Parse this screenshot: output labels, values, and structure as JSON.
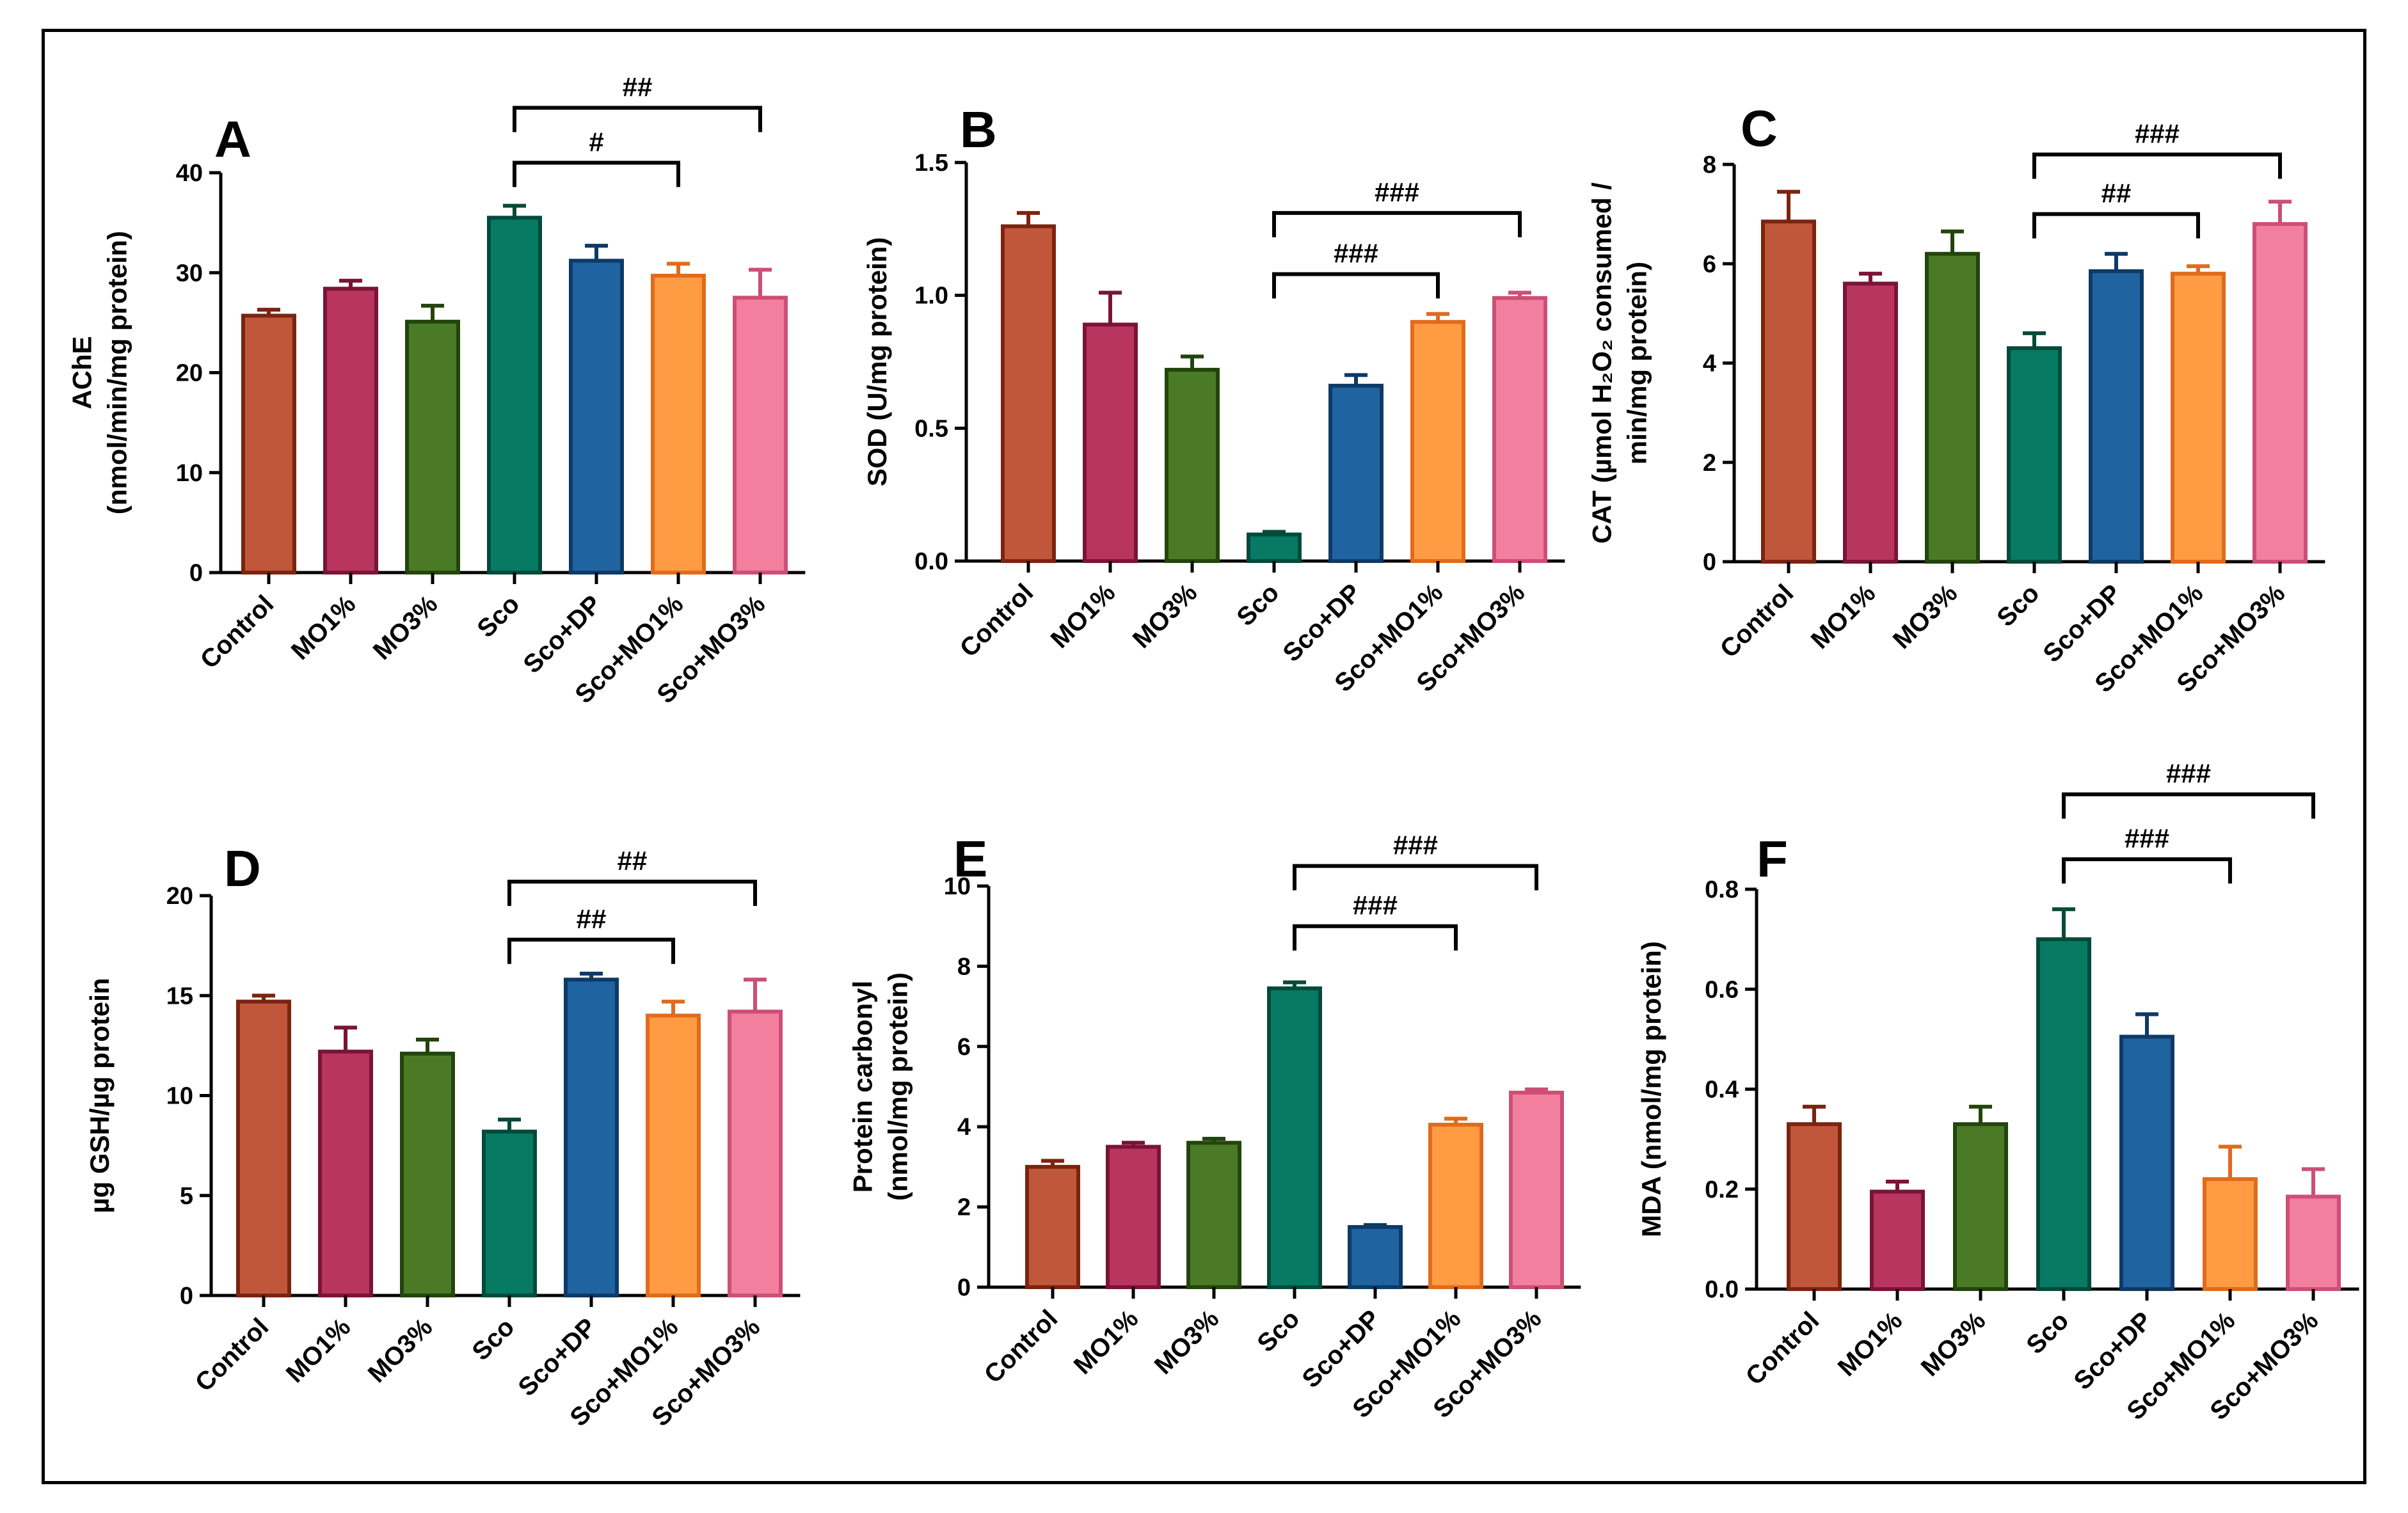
{
  "colors": {
    "Control": "#c0573b",
    "MO1%": "#b8355f",
    "MO3%": "#4b7a26",
    "Sco": "#067a62",
    "Sco+DP": "#2063a1",
    "Sco+MO1%": "#ff9b43",
    "Sco+MO3%": "#f27f9e"
  },
  "edge_colors": {
    "Control": "#7a2410",
    "MO1%": "#7a1436",
    "MO3%": "#22450c",
    "Sco": "#034a3b",
    "Sco+DP": "#0d3a66",
    "Sco+MO1%": "#e06b1d",
    "Sco+MO3%": "#cc4f75"
  },
  "chart_data": [
    {
      "panel": "A",
      "type": "bar",
      "categories": [
        "Control",
        "MO1%",
        "MO3%",
        "Sco",
        "Sco+DP",
        "Sco+MO1%",
        "Sco+MO3%"
      ],
      "values": [
        25.7,
        28.4,
        25.1,
        35.5,
        31.2,
        29.7,
        27.5
      ],
      "errors": [
        0.6,
        0.8,
        1.6,
        1.2,
        1.5,
        1.2,
        2.8
      ],
      "ylabel_lines": [
        "AChE",
        "(nmol/min/mg protein)"
      ],
      "ylim": [
        0,
        40
      ],
      "yticks": [
        "0",
        "10",
        "20",
        "30",
        "40"
      ],
      "ytick_values": [
        0,
        10,
        20,
        30,
        40
      ],
      "significance": [
        {
          "from": 3,
          "to": 5,
          "label": "#",
          "y": 41
        },
        {
          "from": 3,
          "to": 6,
          "label": "##",
          "y": 46.5
        }
      ]
    },
    {
      "panel": "B",
      "type": "bar",
      "categories": [
        "Control",
        "MO1%",
        "MO3%",
        "Sco",
        "Sco+DP",
        "Sco+MO1%",
        "Sco+MO3%"
      ],
      "values": [
        1.26,
        0.89,
        0.72,
        0.1,
        0.66,
        0.9,
        0.99
      ],
      "errors": [
        0.05,
        0.12,
        0.05,
        0.01,
        0.04,
        0.03,
        0.02
      ],
      "ylabel_lines": [
        "SOD (U/mg protein)"
      ],
      "ylim": [
        0,
        1.5
      ],
      "yticks": [
        "0.0",
        "0.5",
        "1.0",
        "1.5"
      ],
      "ytick_values": [
        0,
        0.5,
        1.0,
        1.5
      ],
      "significance": [
        {
          "from": 3,
          "to": 5,
          "label": "###",
          "y": 1.08
        },
        {
          "from": 3,
          "to": 6,
          "label": "###",
          "y": 1.31
        }
      ]
    },
    {
      "panel": "C",
      "type": "bar",
      "categories": [
        "Control",
        "MO1%",
        "MO3%",
        "Sco",
        "Sco+DP",
        "Sco+MO1%",
        "Sco+MO3%"
      ],
      "values": [
        6.85,
        5.6,
        6.2,
        4.3,
        5.85,
        5.8,
        6.8
      ],
      "errors": [
        0.6,
        0.2,
        0.45,
        0.3,
        0.35,
        0.15,
        0.45
      ],
      "ylabel_lines": [
        "CAT (µmol H₂O₂ consumed /",
        "min/mg protein)"
      ],
      "ylim": [
        0,
        8
      ],
      "yticks": [
        "0",
        "2",
        "4",
        "6",
        "8"
      ],
      "ytick_values": [
        0,
        2,
        4,
        6,
        8
      ],
      "significance": [
        {
          "from": 3,
          "to": 5,
          "label": "##",
          "y": 7.0
        },
        {
          "from": 3,
          "to": 6,
          "label": "###",
          "y": 8.2
        }
      ]
    },
    {
      "panel": "D",
      "type": "bar",
      "categories": [
        "Control",
        "MO1%",
        "MO3%",
        "Sco",
        "Sco+DP",
        "Sco+MO1%",
        "Sco+MO3%"
      ],
      "values": [
        14.7,
        12.2,
        12.1,
        8.2,
        15.8,
        14.0,
        14.2
      ],
      "errors": [
        0.3,
        1.2,
        0.7,
        0.6,
        0.3,
        0.7,
        1.6
      ],
      "ylabel_lines": [
        "µg GSH/µg protein"
      ],
      "ylim": [
        0,
        20
      ],
      "yticks": [
        "0",
        "5",
        "10",
        "15",
        "20"
      ],
      "ytick_values": [
        0,
        5,
        10,
        15,
        20
      ],
      "significance": [
        {
          "from": 3,
          "to": 5,
          "label": "##",
          "y": 17.8
        },
        {
          "from": 3,
          "to": 6,
          "label": "##",
          "y": 20.7
        }
      ]
    },
    {
      "panel": "E",
      "type": "bar",
      "categories": [
        "Control",
        "MO1%",
        "MO3%",
        "Sco",
        "Sco+DP",
        "Sco+MO1%",
        "Sco+MO3%"
      ],
      "values": [
        3.0,
        3.5,
        3.6,
        7.45,
        1.5,
        4.05,
        4.85
      ],
      "errors": [
        0.15,
        0.1,
        0.1,
        0.15,
        0.05,
        0.15,
        0.08
      ],
      "ylabel_lines": [
        "Protein carbonyl",
        "(nmol/mg protein)"
      ],
      "ylim": [
        0,
        10
      ],
      "yticks": [
        "0",
        "2",
        "4",
        "6",
        "8",
        "10"
      ],
      "ytick_values": [
        0,
        2,
        4,
        6,
        8,
        10
      ],
      "significance": [
        {
          "from": 3,
          "to": 5,
          "label": "###",
          "y": 9.0
        },
        {
          "from": 3,
          "to": 6,
          "label": "###",
          "y": 10.5
        }
      ]
    },
    {
      "panel": "F",
      "type": "bar",
      "categories": [
        "Control",
        "MO1%",
        "MO3%",
        "Sco",
        "Sco+DP",
        "Sco+MO1%",
        "Sco+MO3%"
      ],
      "values": [
        0.33,
        0.195,
        0.33,
        0.7,
        0.505,
        0.22,
        0.185
      ],
      "errors": [
        0.035,
        0.02,
        0.035,
        0.06,
        0.045,
        0.065,
        0.055
      ],
      "ylabel_lines": [
        "MDA (nmol/mg protein)"
      ],
      "ylim": [
        0,
        0.8
      ],
      "yticks": [
        "0.0",
        "0.2",
        "0.4",
        "0.6",
        "0.8"
      ],
      "ytick_values": [
        0,
        0.2,
        0.4,
        0.6,
        0.8
      ],
      "significance": [
        {
          "from": 3,
          "to": 5,
          "label": "###",
          "y": 0.86
        },
        {
          "from": 3,
          "to": 6,
          "label": "###",
          "y": 0.99
        }
      ]
    }
  ]
}
